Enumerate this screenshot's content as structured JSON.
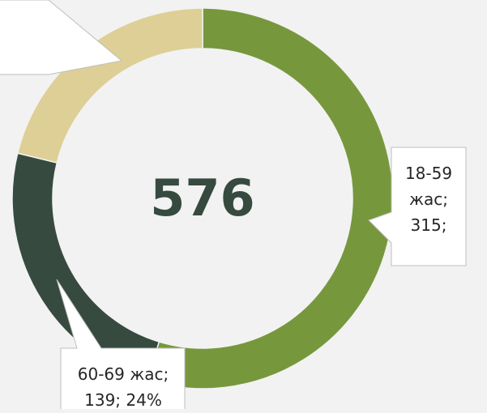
{
  "chart_data": {
    "type": "donut",
    "total": 576,
    "categories": [
      "18-59 жас",
      "60-69 жас",
      null
    ],
    "values": [
      315,
      139,
      122
    ],
    "data_labels": [
      "18-59 жас; 315;",
      "60-69 жас; 139; 24%",
      null
    ],
    "colors": [
      "#77973d",
      "#364a40",
      "#ddcf96"
    ]
  }
}
